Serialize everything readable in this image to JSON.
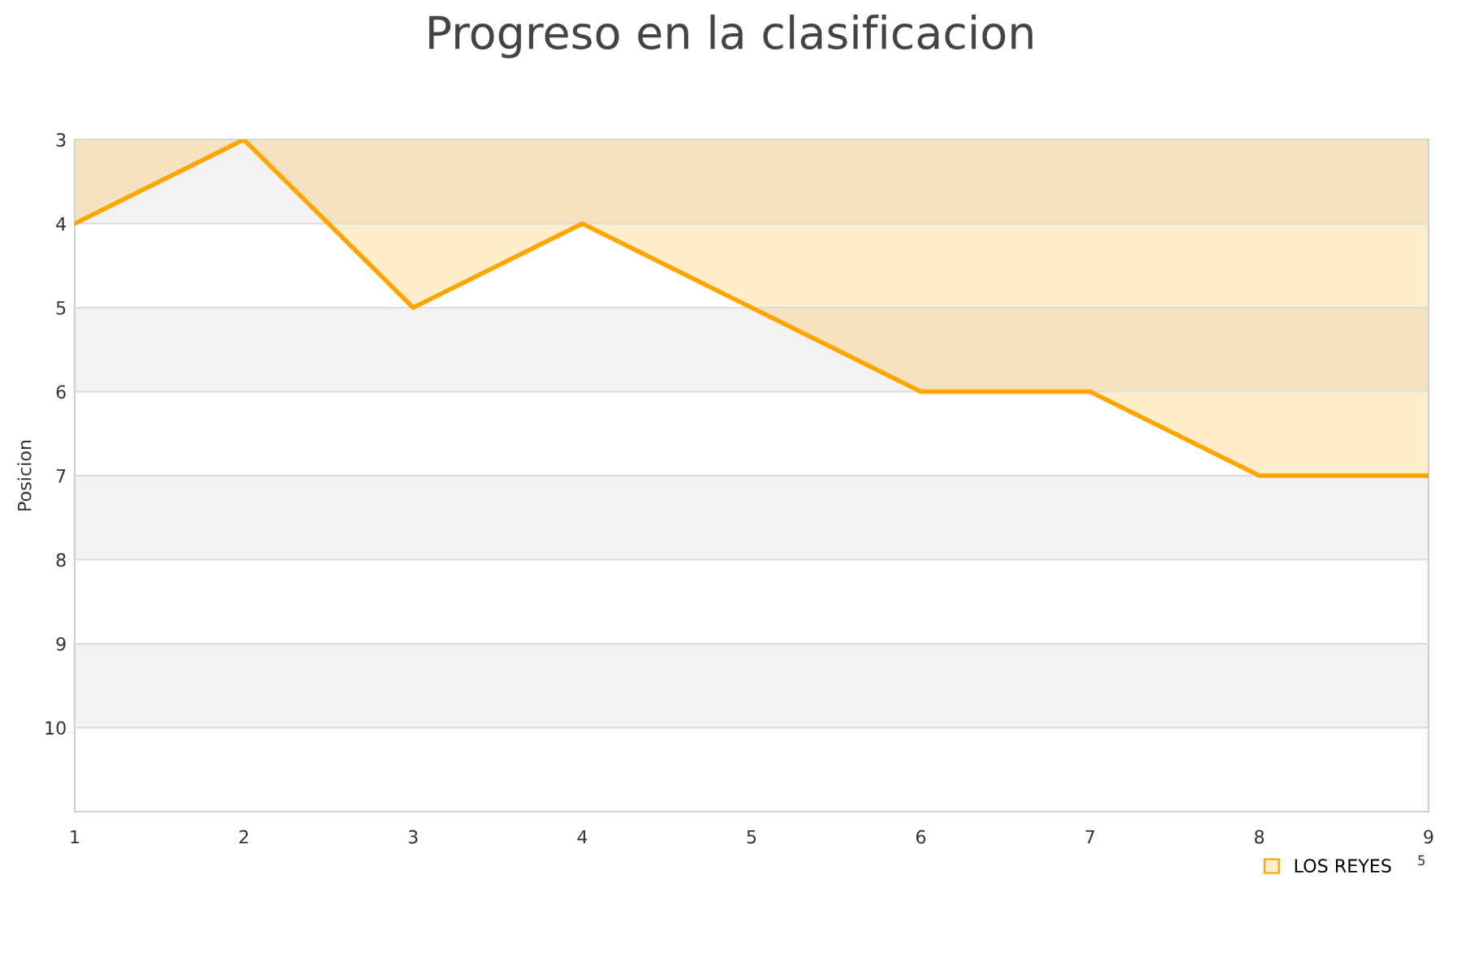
{
  "chart_data": {
    "type": "area",
    "title": "Progreso en la clasificacion",
    "ylabel": "Posicion",
    "x": [
      1,
      2,
      3,
      4,
      5,
      6,
      7,
      8,
      9
    ],
    "series": [
      {
        "name": "LOS REYES",
        "color": "#ffa500",
        "values": [
          4,
          3,
          5,
          4,
          5,
          6,
          6,
          7,
          7
        ]
      }
    ],
    "xlim": [
      1,
      9
    ],
    "xticks": [
      1,
      2,
      3,
      4,
      5,
      6,
      7,
      8,
      9
    ],
    "ylim": [
      11,
      3
    ],
    "yticks": [
      3,
      4,
      5,
      6,
      7,
      8,
      9,
      10
    ],
    "bands": [
      {
        "axis": "y",
        "from": 3,
        "to": 4,
        "color": "#f2f2f2"
      },
      {
        "axis": "y",
        "from": 5,
        "to": 6,
        "color": "#f2f2f2"
      },
      {
        "axis": "y",
        "from": 7,
        "to": 8,
        "color": "#f2f2f2"
      },
      {
        "axis": "y",
        "from": 9,
        "to": 10,
        "color": "#f2f2f2"
      }
    ],
    "grid": "y",
    "legend": "bottom right",
    "annotations": [
      "5"
    ]
  }
}
